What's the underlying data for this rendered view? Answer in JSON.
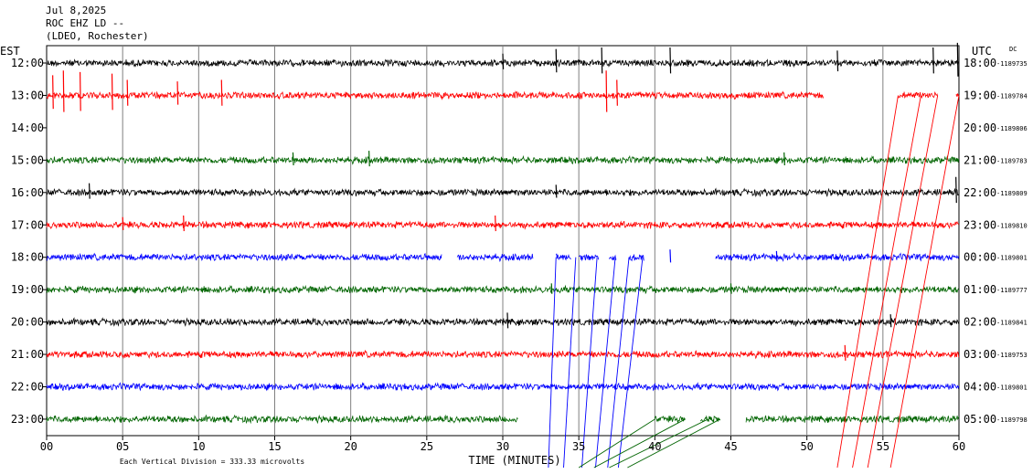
{
  "header": {
    "date": "Jul 8,2025",
    "station": "ROC EHZ LD --",
    "network": "(LDEO, Rochester)"
  },
  "footer": {
    "scale_note": "Each Vertical Division = 333.33 microvolts"
  },
  "chart_data": {
    "type": "line",
    "title": "",
    "xlabel": "TIME (MINUTES)",
    "xlim": [
      0,
      60
    ],
    "x_ticks": [
      "00",
      "05",
      "10",
      "15",
      "20",
      "25",
      "30",
      "35",
      "40",
      "45",
      "50",
      "55",
      "60"
    ],
    "left_axis_label": "EST",
    "right_axis_label": "UTC",
    "right_axis_corner": "DC",
    "grid": true,
    "colors": {
      "black": "#000000",
      "red": "#ff0000",
      "green": "#006400",
      "blue": "#0000ff"
    },
    "rows": [
      {
        "est": "12:00",
        "utc": "18:00",
        "dc": "-1189735",
        "color": "black",
        "segments": [
          [
            0,
            60
          ]
        ],
        "spikes": [
          [
            30,
            0.6
          ],
          [
            33.5,
            0.9
          ],
          [
            36.5,
            1.0
          ],
          [
            41,
            1.0
          ],
          [
            52,
            0.8
          ],
          [
            58.3,
            1.0
          ],
          [
            59.9,
            1.3
          ]
        ]
      },
      {
        "est": "13:00",
        "utc": "19:00",
        "dc": "-1189784",
        "color": "red",
        "segments": [
          [
            0,
            51.1
          ],
          [
            56,
            58.6
          ],
          [
            59.8,
            60
          ]
        ],
        "spikes": [
          [
            0.4,
            1.3
          ],
          [
            1.1,
            1.6
          ],
          [
            2.2,
            1.5
          ],
          [
            4.3,
            1.4
          ],
          [
            5.3,
            1.0
          ],
          [
            8.6,
            0.9
          ],
          [
            11.5,
            1.0
          ],
          [
            36.8,
            1.6
          ],
          [
            37.5,
            1.0
          ]
        ]
      },
      {
        "est": "14:00",
        "utc": "20:00",
        "dc": "-1189806",
        "color": "black",
        "segments": [],
        "spikes": []
      },
      {
        "est": "15:00",
        "utc": "21:00",
        "dc": "-1189783",
        "color": "green",
        "segments": [
          [
            0,
            60
          ]
        ],
        "spikes": [
          [
            16.2,
            0.5
          ],
          [
            21.2,
            0.6
          ],
          [
            48.5,
            0.5
          ]
        ]
      },
      {
        "est": "16:00",
        "utc": "22:00",
        "dc": "-1189809",
        "color": "black",
        "segments": [
          [
            0,
            60
          ]
        ],
        "spikes": [
          [
            2.8,
            0.6
          ],
          [
            33.5,
            0.5
          ],
          [
            59.8,
            1.0
          ]
        ]
      },
      {
        "est": "17:00",
        "utc": "23:00",
        "dc": "-1189810",
        "color": "red",
        "segments": [
          [
            0,
            60
          ]
        ],
        "spikes": [
          [
            5,
            0.5
          ],
          [
            9,
            0.6
          ],
          [
            29.5,
            0.6
          ]
        ]
      },
      {
        "est": "18:00",
        "utc": "00:00",
        "dc": "-1189801",
        "color": "blue",
        "segments": [
          [
            0,
            26
          ],
          [
            27,
            32
          ],
          [
            33.5,
            34.5
          ],
          [
            35,
            36.3
          ],
          [
            37,
            37.5
          ],
          [
            38.3,
            39.3
          ],
          [
            44,
            60
          ]
        ],
        "spikes": [
          [
            41,
            0.5
          ],
          [
            48,
            0.4
          ]
        ]
      },
      {
        "est": "19:00",
        "utc": "01:00",
        "dc": "-1189777",
        "color": "green",
        "segments": [
          [
            0,
            60
          ]
        ],
        "spikes": [
          [
            33.2,
            0.4
          ],
          [
            45,
            0.4
          ]
        ]
      },
      {
        "est": "20:00",
        "utc": "02:00",
        "dc": "-1189841",
        "color": "black",
        "segments": [
          [
            0,
            60
          ]
        ],
        "spikes": [
          [
            30.3,
            0.6
          ],
          [
            55.5,
            0.5
          ]
        ]
      },
      {
        "est": "21:00",
        "utc": "03:00",
        "dc": "-1189753",
        "color": "red",
        "segments": [
          [
            0,
            60
          ]
        ],
        "spikes": [
          [
            52.5,
            0.6
          ]
        ]
      },
      {
        "est": "22:00",
        "utc": "04:00",
        "dc": "-1189801",
        "color": "blue",
        "segments": [
          [
            0,
            60
          ]
        ],
        "spikes": []
      },
      {
        "est": "23:00",
        "utc": "05:00",
        "dc": "-1189798",
        "color": "green",
        "segments": [
          [
            0,
            31
          ],
          [
            40,
            42
          ],
          [
            43,
            44.3
          ],
          [
            46,
            60
          ]
        ],
        "spikes": []
      }
    ]
  }
}
